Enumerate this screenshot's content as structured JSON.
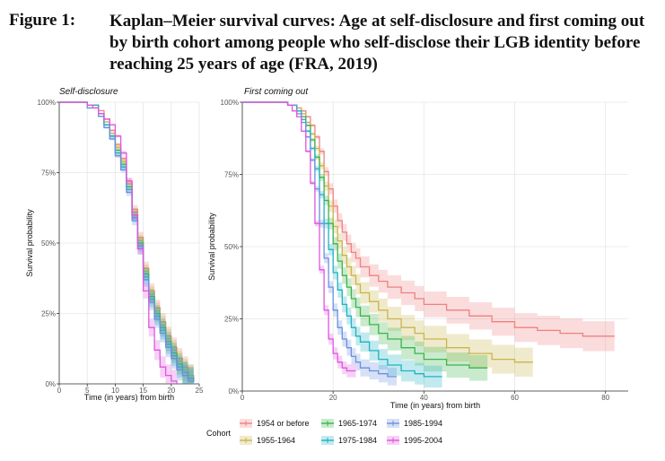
{
  "figure": {
    "label": "Figure 1:",
    "title": "Kaplan–Meier survival curves: Age at self-disclosure and first coming out by birth cohort among people who self-disclose their LGB identity before reaching 25 years of age (FRA, 2019)"
  },
  "legend": {
    "title": "Cohort",
    "position": "bottom"
  },
  "chart_data": [
    {
      "type": "line",
      "title": "Self-disclosure",
      "xlabel": "Time (in years) from birth",
      "ylabel": "Survival probability",
      "xlim": [
        0,
        25
      ],
      "ylim": [
        0,
        1
      ],
      "x_ticks": [
        0,
        5,
        10,
        15,
        20,
        25
      ],
      "x_tick_labels": [
        "0",
        "5",
        "10",
        "15",
        "20",
        "25"
      ],
      "y_ticks": [
        0,
        0.25,
        0.5,
        0.75,
        1
      ],
      "y_tick_labels": [
        "0%",
        "25%",
        "50%",
        "75%",
        "100%"
      ],
      "grid": true,
      "step": true,
      "series": [
        {
          "name": "1954 or before",
          "color": "#f08080",
          "x": [
            0,
            5,
            7,
            8,
            9,
            10,
            11,
            12,
            13,
            14,
            15,
            16,
            17,
            18,
            19,
            20,
            21,
            22,
            23,
            24
          ],
          "y": [
            1,
            0.99,
            0.97,
            0.94,
            0.9,
            0.85,
            0.8,
            0.72,
            0.62,
            0.52,
            0.41,
            0.33,
            0.27,
            0.22,
            0.17,
            0.13,
            0.09,
            0.06,
            0.03,
            0.01
          ]
        },
        {
          "name": "1955-1964",
          "color": "#c9b44a",
          "x": [
            0,
            5,
            7,
            8,
            9,
            10,
            11,
            12,
            13,
            14,
            15,
            16,
            17,
            18,
            19,
            20,
            21,
            22,
            23,
            24
          ],
          "y": [
            1,
            0.99,
            0.96,
            0.93,
            0.89,
            0.84,
            0.79,
            0.71,
            0.61,
            0.51,
            0.4,
            0.32,
            0.26,
            0.21,
            0.16,
            0.12,
            0.08,
            0.05,
            0.03,
            0.01
          ]
        },
        {
          "name": "1965-1974",
          "color": "#3cb44b",
          "x": [
            0,
            5,
            7,
            8,
            9,
            10,
            11,
            12,
            13,
            14,
            15,
            16,
            17,
            18,
            19,
            20,
            21,
            22,
            23,
            24
          ],
          "y": [
            1,
            0.99,
            0.96,
            0.92,
            0.88,
            0.83,
            0.78,
            0.7,
            0.6,
            0.5,
            0.39,
            0.31,
            0.25,
            0.2,
            0.15,
            0.11,
            0.07,
            0.04,
            0.02,
            0.01
          ]
        },
        {
          "name": "1975-1984",
          "color": "#20b2c4",
          "x": [
            0,
            5,
            7,
            8,
            9,
            10,
            11,
            12,
            13,
            14,
            15,
            16,
            17,
            18,
            19,
            20,
            21,
            22,
            23,
            24
          ],
          "y": [
            1,
            0.99,
            0.96,
            0.92,
            0.88,
            0.82,
            0.77,
            0.69,
            0.59,
            0.49,
            0.38,
            0.3,
            0.24,
            0.19,
            0.14,
            0.1,
            0.06,
            0.04,
            0.02,
            0.01
          ]
        },
        {
          "name": "1985-1994",
          "color": "#6b8fe0",
          "x": [
            0,
            5,
            7,
            8,
            9,
            10,
            11,
            12,
            13,
            14,
            15,
            16,
            17,
            18,
            19,
            20,
            21,
            22,
            23,
            24
          ],
          "y": [
            1,
            0.98,
            0.95,
            0.91,
            0.87,
            0.81,
            0.76,
            0.68,
            0.58,
            0.48,
            0.37,
            0.29,
            0.23,
            0.18,
            0.13,
            0.09,
            0.05,
            0.03,
            0.01,
            0.005
          ]
        },
        {
          "name": "1995-2004",
          "color": "#e055e0",
          "x": [
            0,
            5,
            6,
            7,
            8,
            9,
            10,
            11,
            12,
            13,
            14,
            15,
            16,
            17,
            18,
            19,
            20,
            21
          ],
          "y": [
            1,
            0.99,
            0.98,
            0.96,
            0.94,
            0.92,
            0.88,
            0.82,
            0.72,
            0.6,
            0.48,
            0.33,
            0.2,
            0.12,
            0.06,
            0.03,
            0.01,
            0
          ]
        }
      ]
    },
    {
      "type": "line",
      "title": "First coming out",
      "xlabel": "Time (in years) from birth",
      "ylabel": "Survival probability",
      "xlim": [
        0,
        85
      ],
      "ylim": [
        0,
        1
      ],
      "x_ticks": [
        0,
        20,
        40,
        60,
        80
      ],
      "x_tick_labels": [
        "0",
        "20",
        "40",
        "60",
        "80"
      ],
      "y_ticks": [
        0,
        0.25,
        0.5,
        0.75,
        1
      ],
      "y_tick_labels": [
        "0%",
        "25%",
        "50%",
        "75%",
        "100%"
      ],
      "grid": true,
      "step": true,
      "series": [
        {
          "name": "1954 or before",
          "color": "#f08080",
          "x": [
            0,
            10,
            12,
            13,
            14,
            15,
            16,
            17,
            18,
            19,
            20,
            21,
            22,
            23,
            24,
            25,
            26,
            28,
            30,
            32,
            35,
            38,
            40,
            45,
            50,
            55,
            60,
            65,
            70,
            75,
            82
          ],
          "y": [
            1,
            0.99,
            0.98,
            0.97,
            0.95,
            0.92,
            0.88,
            0.83,
            0.76,
            0.7,
            0.64,
            0.59,
            0.55,
            0.51,
            0.48,
            0.46,
            0.43,
            0.4,
            0.38,
            0.36,
            0.34,
            0.32,
            0.3,
            0.28,
            0.26,
            0.24,
            0.22,
            0.21,
            0.2,
            0.19,
            0.19
          ]
        },
        {
          "name": "1955-1964",
          "color": "#c9b44a",
          "x": [
            0,
            10,
            12,
            13,
            14,
            15,
            16,
            17,
            18,
            19,
            20,
            21,
            22,
            23,
            24,
            25,
            26,
            28,
            30,
            32,
            35,
            38,
            40,
            45,
            50,
            55,
            60,
            64
          ],
          "y": [
            1,
            0.99,
            0.98,
            0.96,
            0.93,
            0.89,
            0.84,
            0.78,
            0.71,
            0.64,
            0.57,
            0.52,
            0.47,
            0.43,
            0.4,
            0.37,
            0.34,
            0.31,
            0.28,
            0.25,
            0.22,
            0.2,
            0.18,
            0.15,
            0.13,
            0.11,
            0.1,
            0.1
          ]
        },
        {
          "name": "1965-1974",
          "color": "#3cb44b",
          "x": [
            0,
            10,
            12,
            13,
            14,
            15,
            16,
            17,
            18,
            19,
            20,
            21,
            22,
            23,
            24,
            25,
            26,
            28,
            30,
            32,
            35,
            38,
            40,
            45,
            50,
            54
          ],
          "y": [
            1,
            0.99,
            0.97,
            0.95,
            0.92,
            0.87,
            0.81,
            0.74,
            0.66,
            0.58,
            0.51,
            0.45,
            0.4,
            0.36,
            0.32,
            0.29,
            0.26,
            0.23,
            0.2,
            0.18,
            0.15,
            0.13,
            0.11,
            0.09,
            0.08,
            0.08
          ]
        },
        {
          "name": "1975-1984",
          "color": "#20b2c4",
          "x": [
            0,
            10,
            12,
            13,
            14,
            15,
            16,
            17,
            18,
            19,
            20,
            21,
            22,
            23,
            24,
            25,
            26,
            28,
            30,
            32,
            35,
            38,
            40,
            44
          ],
          "y": [
            1,
            0.99,
            0.97,
            0.94,
            0.9,
            0.84,
            0.77,
            0.68,
            0.58,
            0.49,
            0.41,
            0.35,
            0.3,
            0.26,
            0.22,
            0.19,
            0.17,
            0.14,
            0.11,
            0.09,
            0.07,
            0.06,
            0.05,
            0.05
          ]
        },
        {
          "name": "1985-1994",
          "color": "#6b8fe0",
          "x": [
            0,
            10,
            12,
            13,
            14,
            15,
            16,
            17,
            18,
            19,
            20,
            21,
            22,
            23,
            24,
            25,
            26,
            28,
            30,
            32,
            34
          ],
          "y": [
            1,
            0.99,
            0.96,
            0.93,
            0.88,
            0.8,
            0.7,
            0.58,
            0.46,
            0.36,
            0.28,
            0.22,
            0.18,
            0.15,
            0.12,
            0.1,
            0.08,
            0.07,
            0.06,
            0.05,
            0.05
          ]
        },
        {
          "name": "1995-2004",
          "color": "#e055e0",
          "x": [
            0,
            10,
            11,
            12,
            13,
            14,
            15,
            16,
            17,
            18,
            19,
            20,
            21,
            22,
            23,
            24,
            25
          ],
          "y": [
            1,
            0.99,
            0.97,
            0.95,
            0.9,
            0.83,
            0.72,
            0.58,
            0.42,
            0.28,
            0.18,
            0.13,
            0.1,
            0.08,
            0.07,
            0.07,
            0.07
          ]
        }
      ]
    }
  ]
}
